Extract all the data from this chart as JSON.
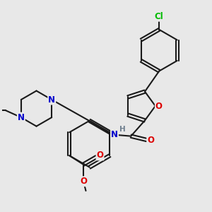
{
  "background_color": "#e8e8e8",
  "bond_color": "#1a1a1a",
  "bond_width": 1.5,
  "atom_colors": {
    "O": "#dd0000",
    "N": "#0000cc",
    "Cl": "#00bb00",
    "C": "#1a1a1a",
    "H": "#708090"
  }
}
